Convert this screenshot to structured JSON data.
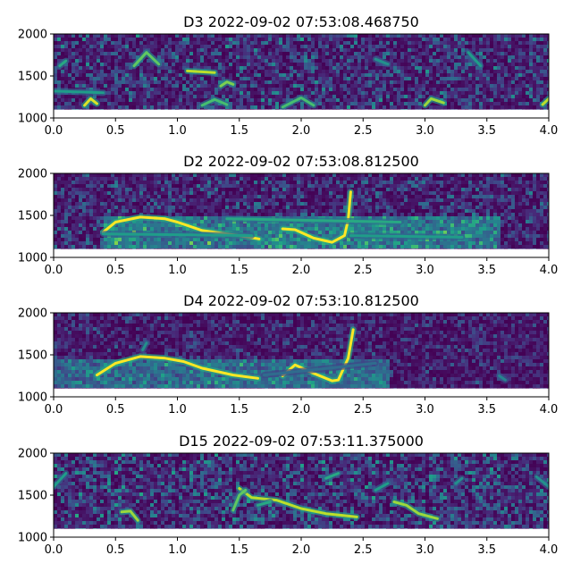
{
  "chart_data": [
    {
      "type": "heatmap",
      "title": "D3 2022-09-02 07:53:08.468750",
      "xlim": [
        0,
        4
      ],
      "ylim": [
        1000,
        2000
      ],
      "data_ymin": 1100,
      "xticks": [
        "0.0",
        "0.5",
        "1.0",
        "1.5",
        "2.0",
        "2.5",
        "3.0",
        "3.5",
        "4.0"
      ],
      "yticks": [
        "1000",
        "1500",
        "2000"
      ],
      "noise_level": 0.35,
      "band": null,
      "traces": [
        {
          "points": [
            [
              0.25,
              1150
            ],
            [
              0.3,
              1230
            ],
            [
              0.35,
              1170
            ]
          ],
          "intensity": 0.95
        },
        {
          "points": [
            [
              0.65,
              1620
            ],
            [
              0.75,
              1780
            ],
            [
              0.85,
              1640
            ]
          ],
          "intensity": 0.75
        },
        {
          "points": [
            [
              1.08,
              1560
            ],
            [
              1.3,
              1540
            ]
          ],
          "intensity": 0.9
        },
        {
          "points": [
            [
              1.35,
              1380
            ],
            [
              1.4,
              1430
            ],
            [
              1.45,
              1400
            ]
          ],
          "intensity": 0.8
        },
        {
          "points": [
            [
              1.2,
              1150
            ],
            [
              1.3,
              1220
            ],
            [
              1.4,
              1160
            ]
          ],
          "intensity": 0.7
        },
        {
          "points": [
            [
              1.85,
              1130
            ],
            [
              2.0,
              1240
            ],
            [
              2.1,
              1150
            ]
          ],
          "intensity": 0.7
        },
        {
          "points": [
            [
              3.0,
              1150
            ],
            [
              3.05,
              1230
            ],
            [
              3.15,
              1180
            ]
          ],
          "intensity": 0.85
        },
        {
          "points": [
            [
              3.95,
              1160
            ],
            [
              4.0,
              1230
            ]
          ],
          "intensity": 0.9
        },
        {
          "points": [
            [
              0.0,
              1320
            ],
            [
              0.4,
              1300
            ]
          ],
          "intensity": 0.55
        },
        {
          "points": [
            [
              0.05,
              1620
            ],
            [
              0.1,
              1680
            ]
          ],
          "intensity": 0.6
        },
        {
          "points": [
            [
              2.6,
              1700
            ],
            [
              2.7,
              1640
            ]
          ],
          "intensity": 0.5
        },
        {
          "points": [
            [
              3.35,
              1780
            ],
            [
              3.45,
              1620
            ]
          ],
          "intensity": 0.55
        }
      ]
    },
    {
      "type": "heatmap",
      "title": "D2 2022-09-02 07:53:08.812500",
      "xlim": [
        0,
        4
      ],
      "ylim": [
        1000,
        2000
      ],
      "data_ymin": 1100,
      "xticks": [
        "0.0",
        "0.5",
        "1.0",
        "1.5",
        "2.0",
        "2.5",
        "3.0",
        "3.5",
        "4.0"
      ],
      "yticks": [
        "1000",
        "1500",
        "2000"
      ],
      "noise_level": 0.3,
      "band": {
        "x": [
          0.4,
          3.6
        ],
        "y": [
          1120,
          1500
        ],
        "level": 0.42
      },
      "traces": [
        {
          "points": [
            [
              0.4,
              1300
            ],
            [
              0.5,
              1420
            ],
            [
              0.7,
              1480
            ],
            [
              0.9,
              1460
            ],
            [
              1.0,
              1420
            ],
            [
              1.2,
              1320
            ],
            [
              1.5,
              1260
            ],
            [
              1.66,
              1220
            ]
          ],
          "intensity": 1.0
        },
        {
          "points": [
            [
              1.85,
              1340
            ],
            [
              1.95,
              1330
            ],
            [
              2.1,
              1230
            ],
            [
              2.25,
              1180
            ],
            [
              2.35,
              1260
            ],
            [
              2.38,
              1450
            ],
            [
              2.4,
              1780
            ]
          ],
          "intensity": 1.0
        },
        {
          "points": [
            [
              0.4,
              1280
            ],
            [
              1.6,
              1260
            ]
          ],
          "intensity": 0.55
        },
        {
          "points": [
            [
              1.4,
              1460
            ],
            [
              2.8,
              1420
            ]
          ],
          "intensity": 0.6
        },
        {
          "points": [
            [
              2.4,
              1260
            ],
            [
              3.3,
              1240
            ]
          ],
          "intensity": 0.55
        }
      ]
    },
    {
      "type": "heatmap",
      "title": "D4 2022-09-02 07:53:10.812500",
      "xlim": [
        0,
        4
      ],
      "ylim": [
        1000,
        2000
      ],
      "data_ymin": 1100,
      "xticks": [
        "0.0",
        "0.5",
        "1.0",
        "1.5",
        "2.0",
        "2.5",
        "3.0",
        "3.5",
        "4.0"
      ],
      "yticks": [
        "1000",
        "1500",
        "2000"
      ],
      "noise_level": 0.22,
      "band": {
        "x": [
          0.0,
          2.7
        ],
        "y": [
          1120,
          1460
        ],
        "level": 0.38
      },
      "traces": [
        {
          "points": [
            [
              0.35,
              1260
            ],
            [
              0.5,
              1400
            ],
            [
              0.7,
              1480
            ],
            [
              0.9,
              1460
            ],
            [
              1.05,
              1420
            ],
            [
              1.2,
              1340
            ],
            [
              1.45,
              1260
            ],
            [
              1.65,
              1220
            ]
          ],
          "intensity": 1.0
        },
        {
          "points": [
            [
              1.85,
              1250
            ],
            [
              1.95,
              1380
            ],
            [
              2.1,
              1280
            ],
            [
              2.25,
              1190
            ],
            [
              2.3,
              1200
            ],
            [
              2.38,
              1460
            ],
            [
              2.42,
              1800
            ]
          ],
          "intensity": 1.0
        },
        {
          "points": [
            [
              0.72,
              1560
            ],
            [
              0.75,
              1640
            ]
          ],
          "intensity": 0.5
        },
        {
          "points": [
            [
              1.7,
              1260
            ],
            [
              2.6,
              1400
            ]
          ],
          "intensity": 0.35
        },
        {
          "points": [
            [
              3.6,
              1250
            ],
            [
              3.65,
              1200
            ]
          ],
          "intensity": 0.45
        }
      ]
    },
    {
      "type": "heatmap",
      "title": "D15 2022-09-02 07:53:11.375000",
      "xlim": [
        0,
        4
      ],
      "ylim": [
        1000,
        2000
      ],
      "data_ymin": 1100,
      "xticks": [
        "0.0",
        "0.5",
        "1.0",
        "1.5",
        "2.0",
        "2.5",
        "3.0",
        "3.5",
        "4.0"
      ],
      "yticks": [
        "1000",
        "1500",
        "2000"
      ],
      "noise_level": 0.38,
      "band": null,
      "traces": [
        {
          "points": [
            [
              1.5,
              1580
            ],
            [
              1.6,
              1470
            ],
            [
              1.8,
              1440
            ],
            [
              2.0,
              1340
            ],
            [
              2.2,
              1280
            ],
            [
              2.45,
              1240
            ]
          ],
          "intensity": 0.9
        },
        {
          "points": [
            [
              0.55,
              1300
            ],
            [
              0.62,
              1310
            ],
            [
              0.68,
              1200
            ]
          ],
          "intensity": 0.85
        },
        {
          "points": [
            [
              1.45,
              1320
            ],
            [
              1.5,
              1500
            ],
            [
              1.55,
              1560
            ]
          ],
          "intensity": 0.75
        },
        {
          "points": [
            [
              2.75,
              1420
            ],
            [
              2.85,
              1380
            ],
            [
              2.95,
              1280
            ],
            [
              3.1,
              1220
            ]
          ],
          "intensity": 0.85
        },
        {
          "points": [
            [
              1.65,
              1380
            ],
            [
              1.75,
              1420
            ]
          ],
          "intensity": 0.6
        },
        {
          "points": [
            [
              2.2,
              1700
            ],
            [
              2.3,
              1760
            ]
          ],
          "intensity": 0.6
        },
        {
          "points": [
            [
              2.6,
              1560
            ],
            [
              2.7,
              1640
            ]
          ],
          "intensity": 0.55
        },
        {
          "points": [
            [
              0.0,
              1600
            ],
            [
              0.1,
              1760
            ]
          ],
          "intensity": 0.55
        },
        {
          "points": [
            [
              3.9,
              1720
            ],
            [
              4.0,
              1600
            ]
          ],
          "intensity": 0.5
        },
        {
          "points": [
            [
              3.25,
              1640
            ],
            [
              3.3,
              1700
            ]
          ],
          "intensity": 0.5
        }
      ]
    }
  ]
}
